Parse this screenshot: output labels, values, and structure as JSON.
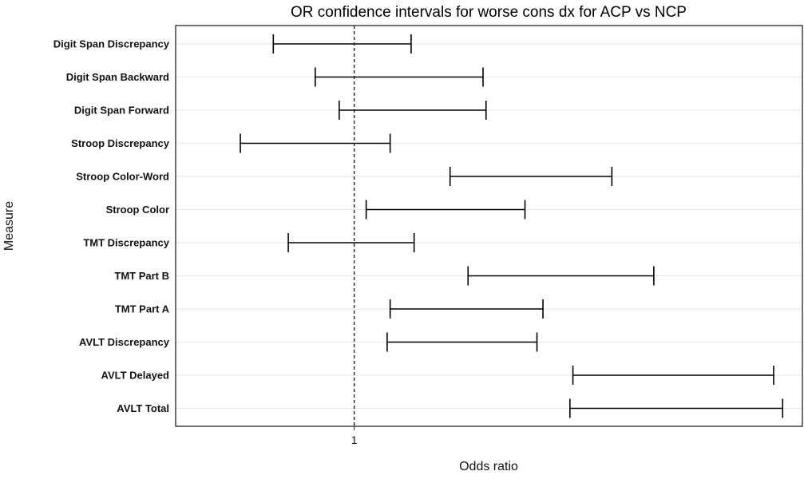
{
  "chart_data": {
    "type": "interval",
    "title": "OR confidence intervals for worse cons dx for ACP vs NCP",
    "xlabel": "Odds ratio",
    "ylabel": "Measure",
    "x_ticks": [
      1
    ],
    "xlim": [
      0.5,
      2.4
    ],
    "reference_line": 1,
    "grid": "horizontal",
    "categories": [
      "Digit Span Discrepancy",
      "Digit Span Backward",
      "Digit Span Forward",
      "Stroop Discrepancy",
      "Stroop Color-Word",
      "Stroop Color",
      "TMT Discrepancy",
      "TMT Part B",
      "TMT Part A",
      "AVLT Discrepancy",
      "AVLT Delayed",
      "AVLT Total"
    ],
    "intervals": [
      {
        "measure": "Digit Span Discrepancy",
        "lower": 0.73,
        "upper": 1.19
      },
      {
        "measure": "Digit Span Backward",
        "lower": 0.87,
        "upper": 1.43
      },
      {
        "measure": "Digit Span Forward",
        "lower": 0.95,
        "upper": 1.44
      },
      {
        "measure": "Stroop Discrepancy",
        "lower": 0.62,
        "upper": 1.12
      },
      {
        "measure": "Stroop Color-Word",
        "lower": 1.32,
        "upper": 1.86
      },
      {
        "measure": "Stroop Color",
        "lower": 1.04,
        "upper": 1.57
      },
      {
        "measure": "TMT Discrepancy",
        "lower": 0.78,
        "upper": 1.2
      },
      {
        "measure": "TMT Part B",
        "lower": 1.38,
        "upper": 2.0
      },
      {
        "measure": "TMT Part A",
        "lower": 1.12,
        "upper": 1.63
      },
      {
        "measure": "AVLT Discrepancy",
        "lower": 1.11,
        "upper": 1.61
      },
      {
        "measure": "AVLT Delayed",
        "lower": 1.73,
        "upper": 2.4
      },
      {
        "measure": "AVLT Total",
        "lower": 1.72,
        "upper": 2.43
      }
    ]
  }
}
